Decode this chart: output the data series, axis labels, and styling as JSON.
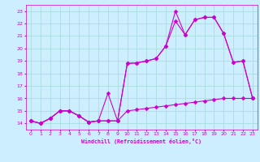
{
  "xlabel": "Windchill (Refroidissement éolien,°C)",
  "xlim": [
    -0.5,
    23.5
  ],
  "ylim": [
    13.5,
    23.5
  ],
  "xticks": [
    0,
    1,
    2,
    3,
    4,
    5,
    6,
    7,
    8,
    9,
    10,
    11,
    12,
    13,
    14,
    15,
    16,
    17,
    18,
    19,
    20,
    21,
    22,
    23
  ],
  "yticks": [
    14,
    15,
    16,
    17,
    18,
    19,
    20,
    21,
    22,
    23
  ],
  "bg_color": "#cceeff",
  "grid_color": "#aadddd",
  "line_color": "#cc00cc",
  "line1_x": [
    0,
    1,
    2,
    3,
    4,
    5,
    6,
    7,
    8,
    9,
    10,
    11,
    12,
    13,
    14,
    15,
    16,
    17,
    18,
    19,
    20,
    21,
    22,
    23
  ],
  "line1_y": [
    14.2,
    14.0,
    14.4,
    15.0,
    15.0,
    14.6,
    14.1,
    14.2,
    14.2,
    14.2,
    15.0,
    15.1,
    15.2,
    15.3,
    15.4,
    15.5,
    15.6,
    15.7,
    15.8,
    15.9,
    16.0,
    16.0,
    16.0,
    16.0
  ],
  "line2_x": [
    0,
    1,
    2,
    3,
    4,
    5,
    6,
    7,
    8,
    9,
    10,
    11,
    12,
    13,
    14,
    15,
    16,
    17,
    18,
    19,
    20,
    21,
    22,
    23
  ],
  "line2_y": [
    14.2,
    14.0,
    14.4,
    15.0,
    15.0,
    14.6,
    14.1,
    14.2,
    16.4,
    14.2,
    18.8,
    18.85,
    19.0,
    19.2,
    20.2,
    22.2,
    21.1,
    22.3,
    22.5,
    22.5,
    21.2,
    18.9,
    19.0,
    16.0
  ],
  "line3_x": [
    0,
    1,
    2,
    3,
    4,
    5,
    6,
    7,
    8,
    9,
    10,
    11,
    12,
    13,
    14,
    15,
    16,
    17,
    18,
    19,
    20,
    21,
    22,
    23
  ],
  "line3_y": [
    14.2,
    14.0,
    14.4,
    15.0,
    15.0,
    14.6,
    14.1,
    14.2,
    14.2,
    14.2,
    18.8,
    18.85,
    19.0,
    19.2,
    20.2,
    23.0,
    21.1,
    22.3,
    22.5,
    22.5,
    21.2,
    18.9,
    19.0,
    16.0
  ],
  "markersize": 2.5
}
